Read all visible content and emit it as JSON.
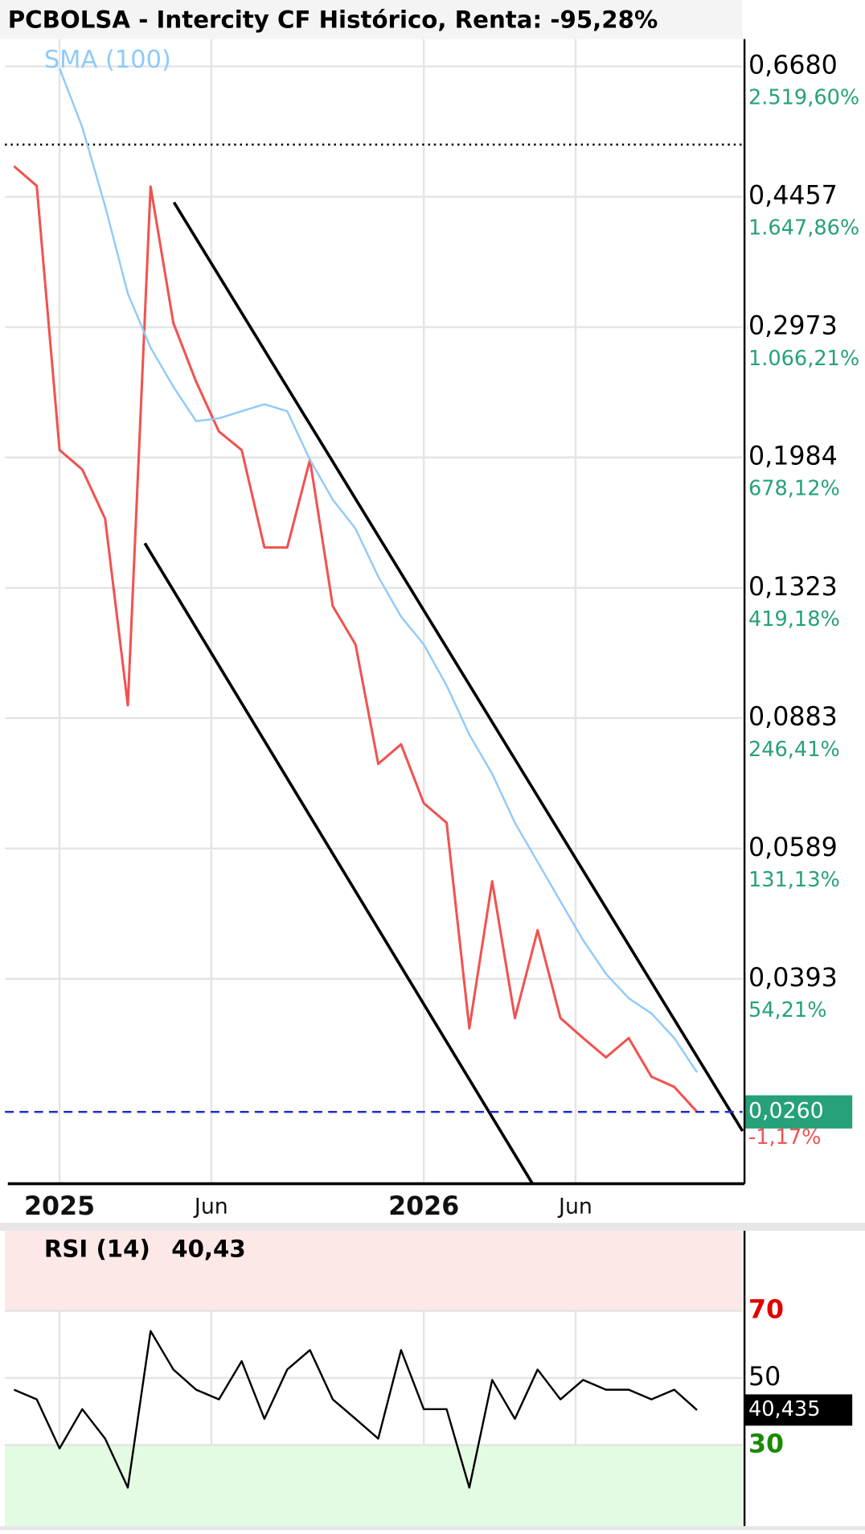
{
  "chart_data": [
    {
      "type": "line",
      "title": "PCBOLSA - Intercity CF Histórico, Renta: -95,28%",
      "x": [
        -1.5,
        -0.75,
        0,
        0.75,
        1.5,
        2.25,
        3,
        3.75,
        4.5,
        5.25,
        6,
        6.75,
        7.5,
        8.25,
        9,
        9.75,
        10.5,
        11.25,
        12,
        12.75,
        13.5,
        14.25,
        15,
        15.75,
        16.5,
        17.25,
        18,
        18.75,
        19.5,
        20.25,
        21
      ],
      "series": [
        {
          "color": "#f05350",
          "values": [
            0.49,
            0.461,
            0.203,
            0.191,
            0.164,
            0.0919,
            0.46,
            0.301,
            0.251,
            0.215,
            0.203,
            0.15,
            0.15,
            0.197,
            0.125,
            0.111,
            0.0766,
            0.0814,
            0.0678,
            0.0638,
            0.0337,
            0.0532,
            0.0348,
            0.0457,
            0.0348,
            0.0327,
            0.0308,
            0.0327,
            0.029,
            0.0281,
            0.026
          ]
        },
        {
          "name": "SMA (100)",
          "color": "#90caf9",
          "values": [
            null,
            null,
            0.664,
            0.553,
            0.433,
            0.33,
            0.279,
            0.247,
            0.222,
            0.224,
            0.229,
            0.234,
            0.229,
            0.197,
            0.174,
            0.159,
            0.137,
            0.121,
            0.111,
            0.0977,
            0.0839,
            0.0743,
            0.0638,
            0.0565,
            0.05,
            0.0443,
            0.0399,
            0.037,
            0.0353,
            0.0327,
            0.0294
          ]
        }
      ],
      "xlim": [
        -1.8,
        22.5
      ],
      "xticks": [
        {
          "value": 0,
          "label": "2025"
        },
        {
          "value": 5,
          "label": "Jun"
        },
        {
          "value": 12,
          "label": "2026"
        },
        {
          "value": 17,
          "label": "Jun"
        }
      ],
      "ylim": [
        0.0208,
        0.727
      ],
      "log_scale": true,
      "grid": true,
      "yticks": [
        {
          "value": 0.668,
          "label": "0,6680"
        },
        {
          "value": 0.4457,
          "label": "0,4457"
        },
        {
          "value": 0.2973,
          "label": "0,2973"
        },
        {
          "value": 0.1984,
          "label": "0,1984"
        },
        {
          "value": 0.1323,
          "label": "0,1323"
        },
        {
          "value": 0.0883,
          "label": "0,0883"
        },
        {
          "value": 0.0589,
          "label": "0,0589"
        },
        {
          "value": 0.0393,
          "label": "0,0393"
        }
      ],
      "ytick_pct_labels": [
        "2.519,60%",
        "1.647,86%",
        "1.066,21%",
        "678,12%",
        "419,18%",
        "246,41%",
        "131,13%",
        "54,21%"
      ],
      "pct_color": "#26a17a",
      "reference_line": 0.524,
      "current": {
        "value": 0.026,
        "label": "0,0260",
        "change_label": "-1,17%",
        "color": "#26a17a",
        "change_color": "#f05350",
        "line_color": "#1f2fd0"
      },
      "trendlines": [
        {
          "x": [
            3.77,
            22.5
          ],
          "y": [
            0.438,
            0.0245
          ]
        },
        {
          "x": [
            2.81,
            15.58
          ],
          "y": [
            0.152,
            0.0208
          ]
        }
      ]
    },
    {
      "type": "line",
      "last_label": "40,43",
      "x": [
        -1.5,
        -0.75,
        0,
        0.75,
        1.5,
        2.25,
        3,
        3.75,
        4.5,
        5.25,
        6,
        6.75,
        7.5,
        8.25,
        9,
        9.75,
        10.5,
        11.25,
        12,
        12.75,
        13.5,
        14.25,
        15,
        15.75,
        16.5,
        17.25,
        18,
        18.75,
        19.5,
        20.25,
        21
      ],
      "series": [
        {
          "name": "RSI (14)",
          "color": "#000000",
          "values": [
            46.5,
            43.6,
            29,
            40.7,
            31.9,
            17.3,
            64,
            52.5,
            46.5,
            43.6,
            55,
            37.8,
            52.5,
            58.3,
            43.6,
            37.8,
            31.9,
            58.3,
            40.7,
            40.7,
            17.3,
            49.4,
            37.8,
            52.5,
            43.6,
            49.4,
            46.5,
            46.5,
            43.6,
            46.5,
            40.435
          ]
        }
      ],
      "xlim": [
        -1.8,
        22.5
      ],
      "ylim": [
        5.8,
        93.9
      ],
      "yticks": [
        70,
        50,
        30
      ],
      "ytick_colors": [
        "#e00000",
        "#000000",
        "#1a8a00"
      ],
      "current": {
        "value": 40.435,
        "label": "40,435"
      }
    }
  ]
}
